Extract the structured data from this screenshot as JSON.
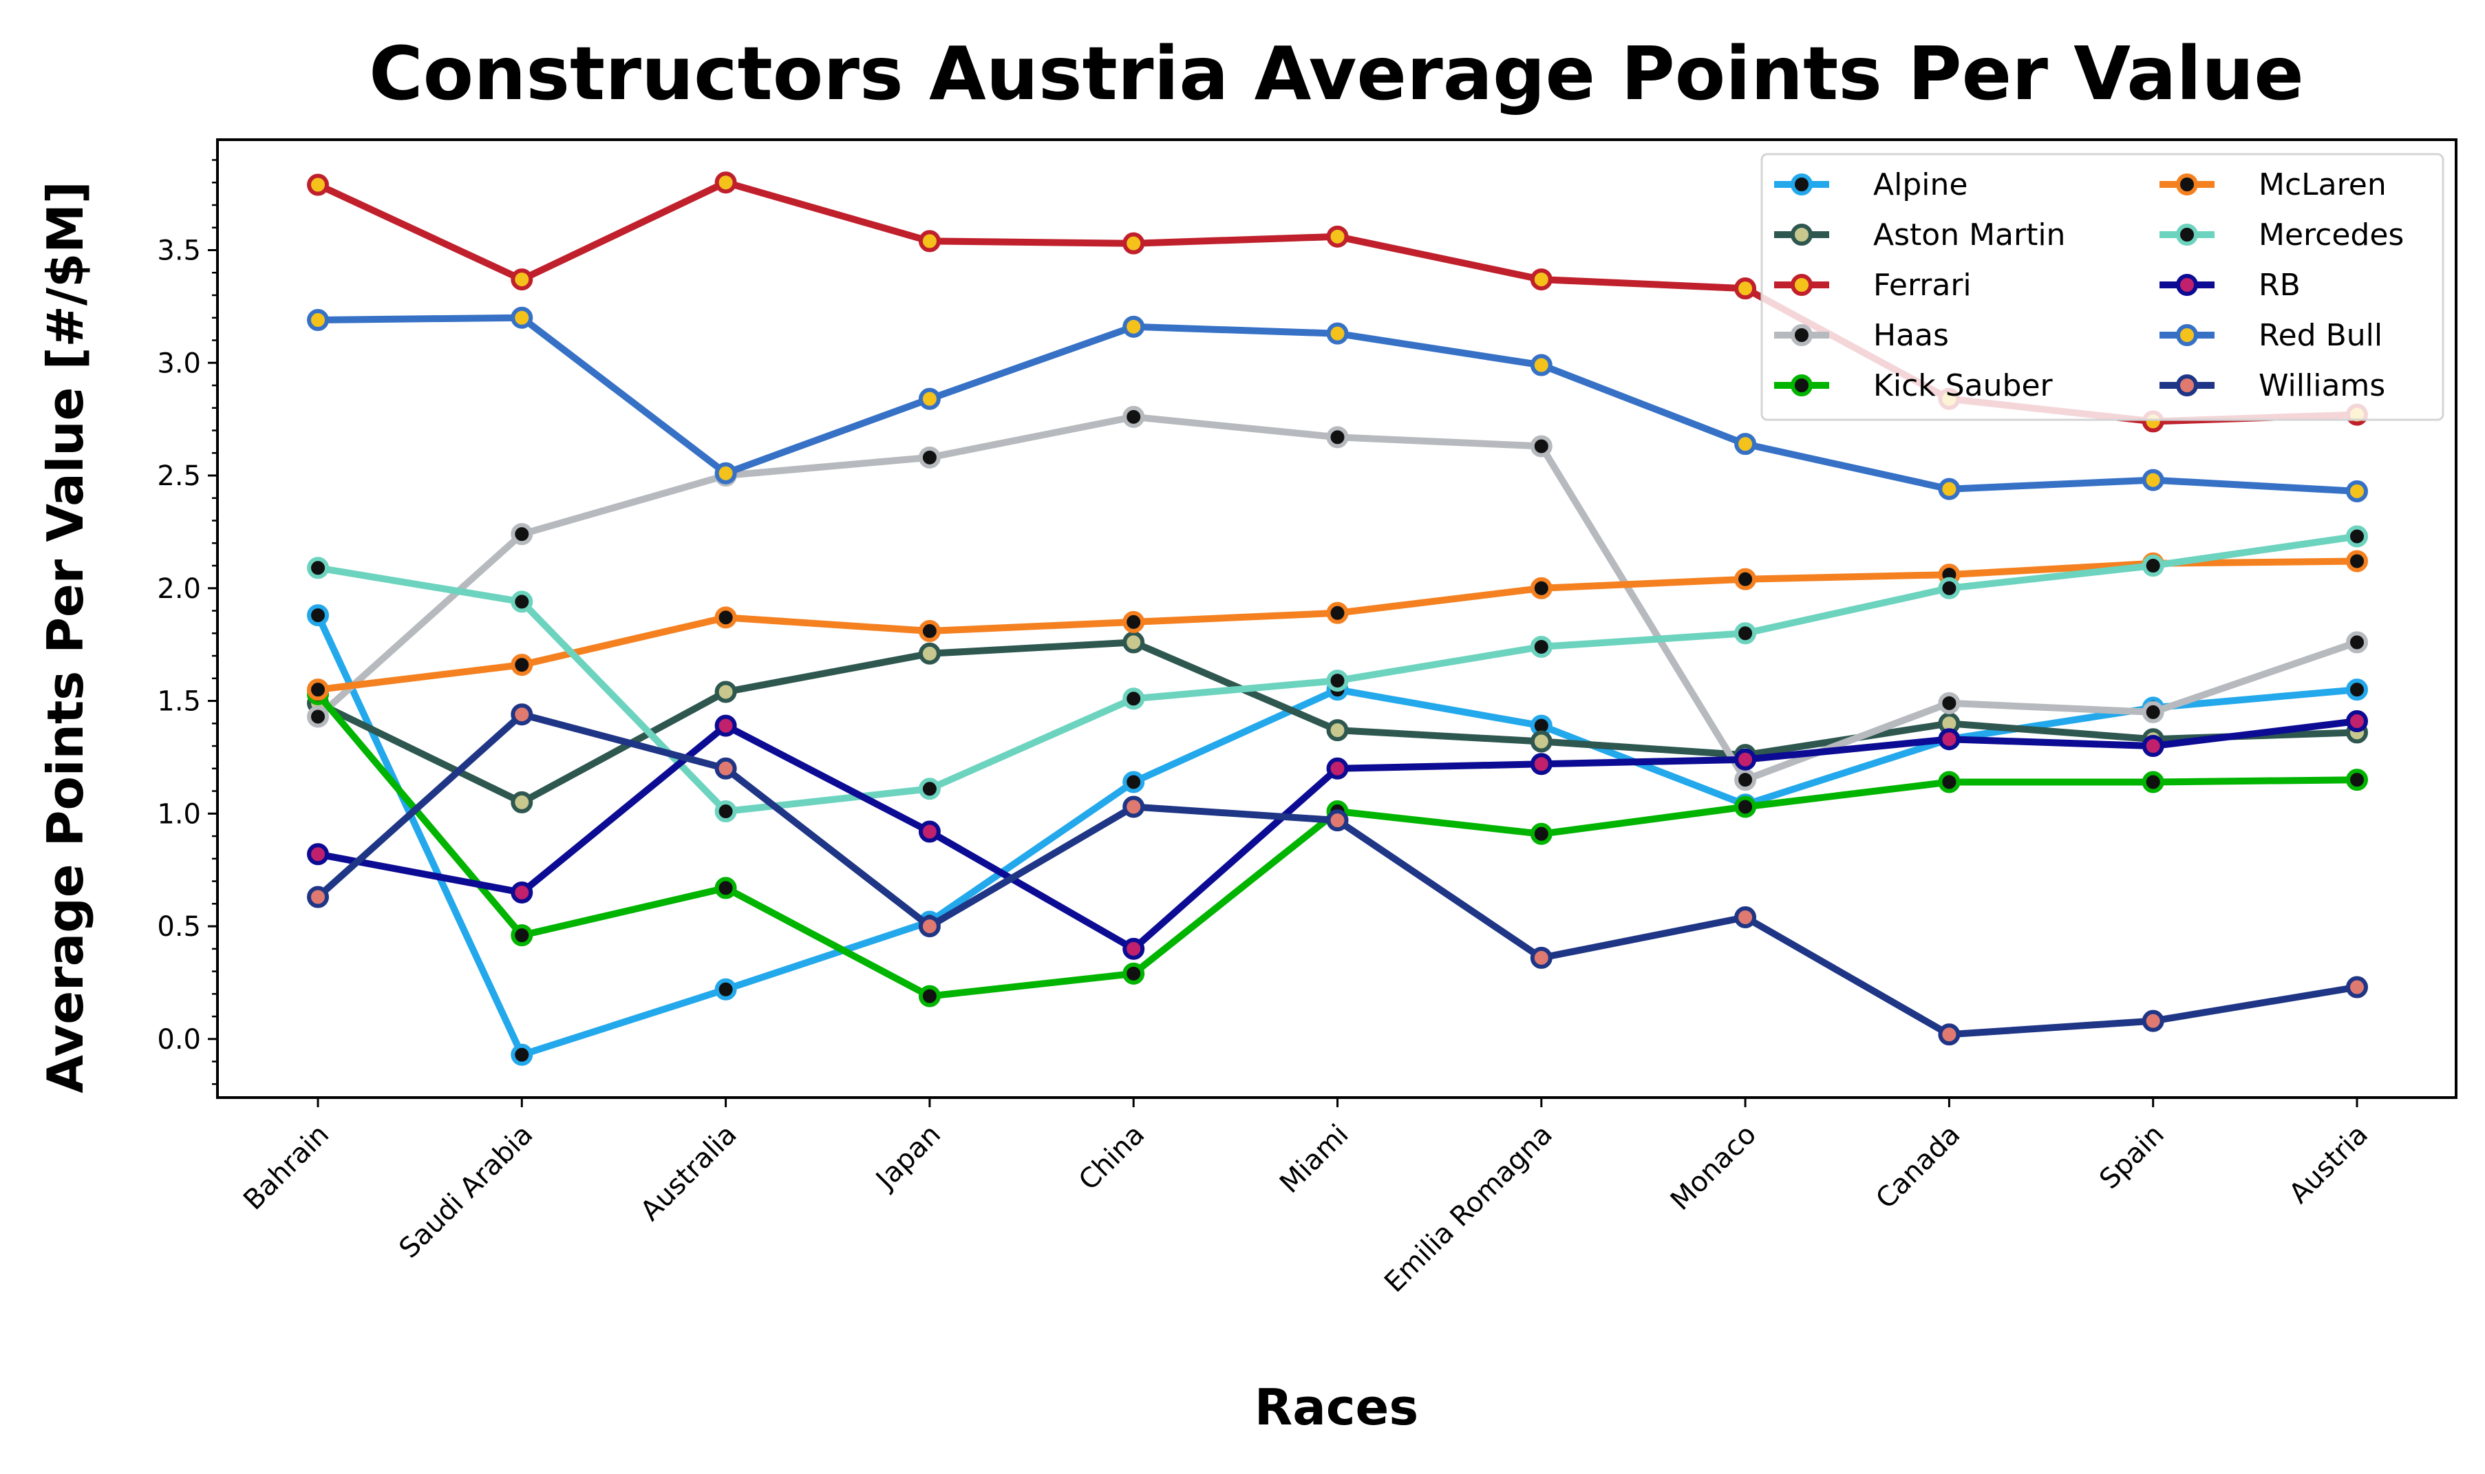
{
  "chart_data": {
    "type": "line",
    "title": "Constructors Austria Average Points Per Value",
    "xlabel": "Races",
    "ylabel": "Average Points Per Value [#/$M]",
    "categories": [
      "Bahrain",
      "Saudi Arabia",
      "Australia",
      "Japan",
      "China",
      "Miami",
      "Emilia Romagna",
      "Monaco",
      "Canada",
      "Spain",
      "Austria"
    ],
    "ylim": [
      -0.26,
      3.99
    ],
    "yticks": [
      0.0,
      0.5,
      1.0,
      1.5,
      2.0,
      2.5,
      3.0,
      3.5
    ],
    "ytick_labels": [
      "0.0",
      "0.5",
      "1.0",
      "1.5",
      "2.0",
      "2.5",
      "3.0",
      "3.5"
    ],
    "grid": false,
    "legend_position": "top-right",
    "series": [
      {
        "name": "Alpine",
        "color": "#23a8ec",
        "marker_face": "#111111",
        "values": [
          1.88,
          -0.07,
          0.22,
          0.52,
          1.14,
          1.55,
          1.39,
          1.04,
          1.33,
          1.47,
          1.55
        ]
      },
      {
        "name": "Aston Martin",
        "color": "#2e574f",
        "marker_face": "#c7c78e",
        "values": [
          1.49,
          1.05,
          1.54,
          1.71,
          1.76,
          1.37,
          1.32,
          1.26,
          1.4,
          1.33,
          1.36
        ]
      },
      {
        "name": "Ferrari",
        "color": "#c0202c",
        "marker_face": "#f5c21b",
        "values": [
          3.79,
          3.37,
          3.8,
          3.54,
          3.53,
          3.56,
          3.37,
          3.33,
          2.84,
          2.74,
          2.77
        ]
      },
      {
        "name": "Haas",
        "color": "#b6b9bd",
        "marker_face": "#111111",
        "values": [
          1.43,
          2.24,
          2.5,
          2.58,
          2.76,
          2.67,
          2.63,
          1.15,
          1.49,
          1.45,
          1.76
        ]
      },
      {
        "name": "Kick Sauber",
        "color": "#00b400",
        "marker_face": "#111111",
        "values": [
          1.53,
          0.46,
          0.67,
          0.19,
          0.29,
          1.01,
          0.91,
          1.03,
          1.14,
          1.14,
          1.15
        ]
      },
      {
        "name": "McLaren",
        "color": "#f58020",
        "marker_face": "#111111",
        "values": [
          1.55,
          1.66,
          1.87,
          1.81,
          1.85,
          1.89,
          2.0,
          2.04,
          2.06,
          2.11,
          2.12
        ]
      },
      {
        "name": "Mercedes",
        "color": "#6cd3bf",
        "marker_face": "#111111",
        "values": [
          2.09,
          1.94,
          1.01,
          1.11,
          1.51,
          1.59,
          1.74,
          1.8,
          2.0,
          2.1,
          2.23
        ]
      },
      {
        "name": "RB",
        "color": "#0c0b93",
        "marker_face": "#c0206c",
        "values": [
          0.82,
          0.65,
          1.39,
          0.92,
          0.4,
          1.2,
          1.22,
          1.24,
          1.33,
          1.3,
          1.41
        ]
      },
      {
        "name": "Red Bull",
        "color": "#3671c6",
        "marker_face": "#f5c21b",
        "values": [
          3.19,
          3.2,
          2.51,
          2.84,
          3.16,
          3.13,
          2.99,
          2.64,
          2.44,
          2.48,
          2.43
        ]
      },
      {
        "name": "Williams",
        "color": "#1f3585",
        "marker_face": "#e07a70",
        "values": [
          0.63,
          1.44,
          1.2,
          0.5,
          1.03,
          0.97,
          0.36,
          0.54,
          0.02,
          0.08,
          0.23
        ]
      }
    ]
  }
}
